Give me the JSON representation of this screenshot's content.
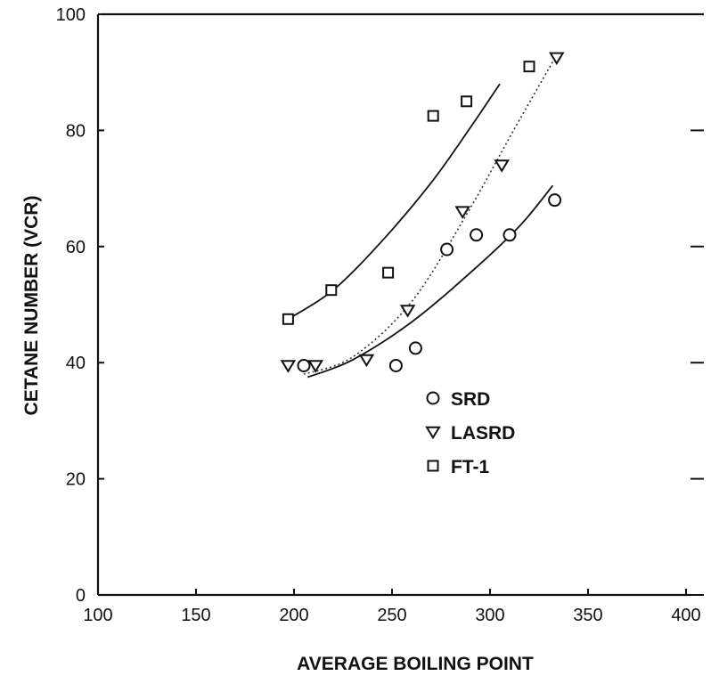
{
  "chart_data": {
    "type": "scatter",
    "title": "",
    "xlabel": "AVERAGE BOILING POINT",
    "ylabel": "CETANE NUMBER (VCR)",
    "xlim": [
      100,
      400
    ],
    "ylim": [
      0,
      100
    ],
    "x_tick_labels": [
      "100",
      "150",
      "200",
      "250",
      "300",
      "350",
      "400"
    ],
    "y_tick_labels": [
      "0",
      "20",
      "40",
      "60",
      "80",
      "100"
    ],
    "x_ticks": [
      100,
      150,
      200,
      250,
      300,
      350,
      400
    ],
    "y_ticks": [
      0,
      20,
      40,
      60,
      80,
      100
    ],
    "grid": false,
    "legend_position": "right-middle",
    "series": [
      {
        "name": "SRD",
        "marker": "circle",
        "points": [
          [
            205,
            39.5
          ],
          [
            252,
            39.5
          ],
          [
            262,
            42.5
          ],
          [
            278,
            59.5
          ],
          [
            293,
            62
          ],
          [
            310,
            62
          ],
          [
            333,
            68
          ]
        ],
        "fit": {
          "style": "solid",
          "points": [
            [
              207,
              37.5
            ],
            [
              230,
              40.5
            ],
            [
              260,
              47
            ],
            [
              290,
              55.5
            ],
            [
              315,
              63.5
            ],
            [
              332,
              70.5
            ]
          ]
        }
      },
      {
        "name": "LASRD",
        "marker": "triangle-down",
        "points": [
          [
            197,
            39.5
          ],
          [
            211,
            39.5
          ],
          [
            237,
            40.5
          ],
          [
            258,
            49
          ],
          [
            286,
            66
          ],
          [
            306,
            74
          ],
          [
            334,
            92.5
          ]
        ],
        "fit": {
          "style": "dotted",
          "points": [
            [
              205,
              38
            ],
            [
              230,
              41
            ],
            [
              260,
              50.5
            ],
            [
              288,
              65.5
            ],
            [
              312,
              80
            ],
            [
              334,
              93
            ]
          ]
        }
      },
      {
        "name": "FT-1",
        "marker": "square",
        "points": [
          [
            197,
            47.5
          ],
          [
            219,
            52.5
          ],
          [
            248,
            55.5
          ],
          [
            271,
            82.5
          ],
          [
            288,
            85
          ],
          [
            320,
            91
          ]
        ],
        "fit": {
          "style": "solid",
          "points": [
            [
              197,
              47.5
            ],
            [
              220,
              52.5
            ],
            [
              245,
              61
            ],
            [
              270,
              71
            ],
            [
              290,
              80.5
            ],
            [
              305,
              88
            ]
          ]
        }
      }
    ]
  }
}
